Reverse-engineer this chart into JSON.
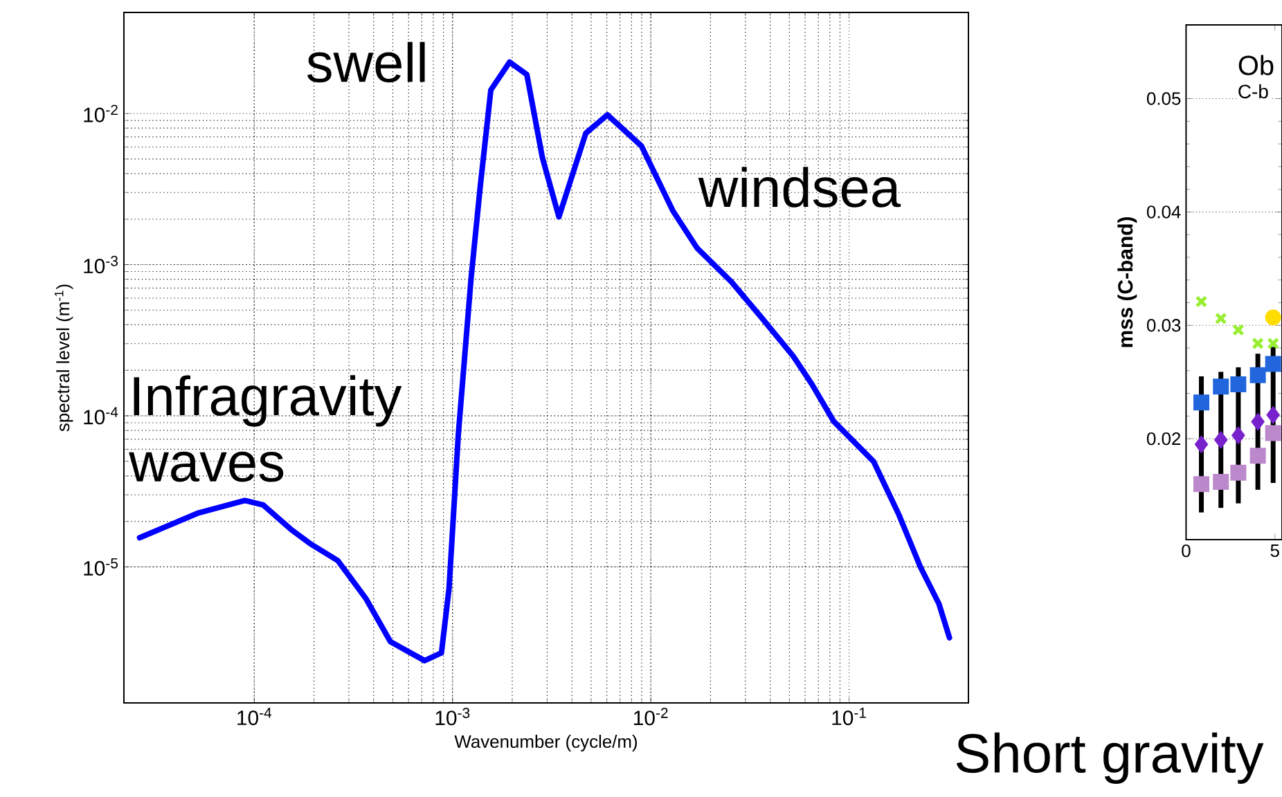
{
  "chart_data": [
    {
      "type": "line",
      "xlabel": "Wavenumber (cycle/m)",
      "ylabel": "spectral level (m$^{-1}$)",
      "log": "xy",
      "grid": true,
      "xlim": [
        2.2e-05,
        0.4
      ],
      "ylim": [
        1.26e-06,
        0.0466
      ],
      "xticks": [
        {
          "value": 0.0001,
          "label": "10$^{-4}$"
        },
        {
          "value": 0.001,
          "label": "10$^{-3}$"
        },
        {
          "value": 0.01,
          "label": "10$^{-2}$"
        },
        {
          "value": 0.1,
          "label": "10$^{-1}$"
        }
      ],
      "yticks": [
        {
          "value": 1e-05,
          "label": "10$^{-5}$"
        },
        {
          "value": 0.0001,
          "label": "10$^{-4}$"
        },
        {
          "value": 0.001,
          "label": "10$^{-3}$"
        },
        {
          "value": 0.01,
          "label": "10$^{-2}$"
        }
      ],
      "x": [
        2.64e-05,
        5.24e-05,
        8.97e-05,
        0.000111,
        0.000154,
        0.000191,
        0.000264,
        0.000365,
        0.000486,
        0.000723,
        0.000879,
        0.00096,
        0.00107,
        0.00124,
        0.00138,
        0.00156,
        0.00194,
        0.00237,
        0.00284,
        0.00344,
        0.0047,
        0.00604,
        0.00897,
        0.0129,
        0.0171,
        0.0255,
        0.0365,
        0.0524,
        0.0649,
        0.0836,
        0.133,
        0.178,
        0.229,
        0.284,
        0.321
      ],
      "series": [
        {
          "color": "#0000ff",
          "values": [
            1.56e-05,
            2.28e-05,
            2.75e-05,
            2.57e-05,
            1.76e-05,
            1.43e-05,
            1.1e-05,
            6.2e-06,
            3.2e-06,
            2.4e-06,
            2.7e-06,
            7.2e-06,
            7.6e-05,
            0.00081,
            0.0033,
            0.0143,
            0.0219,
            0.0181,
            0.0051,
            0.00207,
            0.0074,
            0.0098,
            0.0061,
            0.00228,
            0.00129,
            0.00077,
            0.00044,
            0.000247,
            0.000162,
            9.2e-05,
            4.98e-05,
            2.23e-05,
            1e-05,
            5.7e-06,
            3.4e-06
          ]
        }
      ],
      "annotations": [
        "swell",
        "windsea",
        "Infragravity waves",
        "Short gravity"
      ]
    },
    {
      "type": "scatter",
      "ylabel": "mss (C-band)",
      "grid": "y",
      "xlim": [
        0,
        5.4
      ],
      "ylim": [
        0.0111,
        0.0565
      ],
      "xticks": [
        0,
        5
      ],
      "yticks": [
        0.02,
        0.03,
        0.04,
        0.05
      ],
      "x": [
        0.86,
        1.96,
        2.94,
        4.04,
        4.9
      ],
      "series": [
        {
          "color": "#99ee33",
          "marker": "cross",
          "values": [
            0.0321,
            0.0306,
            0.0296,
            0.0284,
            0.0284
          ]
        },
        {
          "color": "#2266dd",
          "marker": "square",
          "values": [
            0.0232,
            0.0246,
            0.0248,
            0.0256,
            0.0266
          ]
        },
        {
          "color": "#7722cc",
          "marker": "diamond",
          "values": [
            0.0195,
            0.0199,
            0.0203,
            0.0215,
            0.0221
          ],
          "errors": [
            0.006,
            0.006,
            0.006,
            0.006,
            0.006
          ]
        },
        {
          "color": "#bb88cc",
          "marker": "square",
          "values": [
            0.016,
            0.0162,
            0.017,
            0.0185,
            0.0205
          ]
        },
        {
          "color": "#ffdd00",
          "marker": "circle",
          "values": [
            null,
            null,
            null,
            null,
            0.0307
          ]
        }
      ],
      "annotations": [
        "Ob",
        "C-b"
      ]
    }
  ]
}
